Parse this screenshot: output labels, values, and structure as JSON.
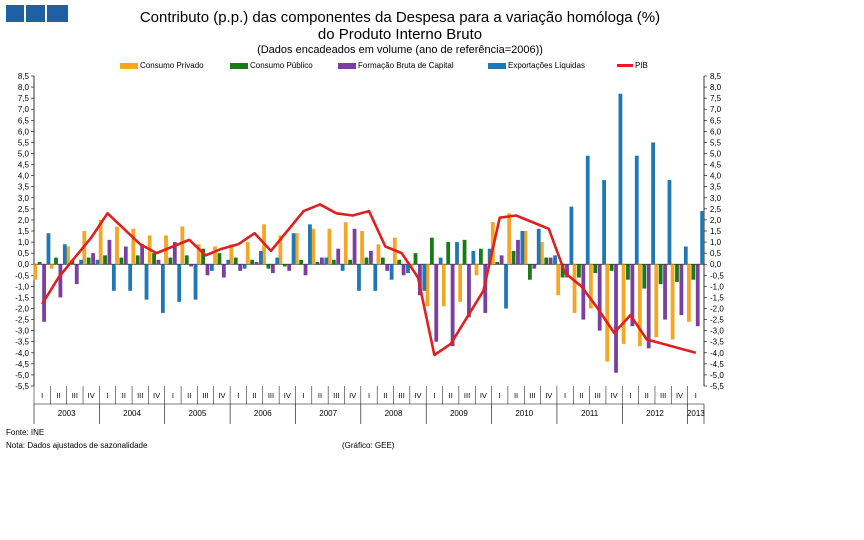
{
  "header": {
    "title_line1": "Contributo (p.p.) das componentes da Despesa para a variação homóloga (%)",
    "title_line2": "do Produto Interno Bruto",
    "subtitle": "(Dados encadeados em volume (ano de referência=2006))"
  },
  "colors": {
    "logo": "#1f5fa3",
    "consumo_privado": "#f5a623",
    "consumo_publico": "#1a7a1a",
    "fbc": "#7a3fa0",
    "exportacoes": "#1f78b4",
    "pib": "#e02020"
  },
  "legend": [
    {
      "label": "Consumo Privado",
      "key": "consumo_privado",
      "kind": "bar"
    },
    {
      "label": "Consumo Público",
      "key": "consumo_publico",
      "kind": "bar"
    },
    {
      "label": "Formação Bruta de Capital",
      "key": "fbc",
      "kind": "bar"
    },
    {
      "label": "Exportações Líquidas",
      "key": "exportacoes",
      "kind": "bar"
    },
    {
      "label": "PIB",
      "key": "pib",
      "kind": "line"
    }
  ],
  "footer": {
    "source": "Fonte:  INE",
    "note": "Nota: Dados ajustados de sazonalidade",
    "credit": "(Gráfico:  GEE)"
  },
  "chart_data": {
    "type": "bar",
    "title": "Contributo (p.p.) das componentes da Despesa para a variação homóloga (%) do Produto Interno Bruto",
    "ylim": [
      -5.5,
      8.5
    ],
    "yticks": [
      "8,5",
      "8,0",
      "7,5",
      "7,0",
      "6,5",
      "6,0",
      "5,5",
      "5,0",
      "4,5",
      "4,0",
      "3,5",
      "3,0",
      "2,5",
      "2,0",
      "1,5",
      "1,0",
      "0,5",
      "0,0",
      "-0,5",
      "-1,0",
      "-1,5",
      "-2,0",
      "-2,5",
      "-3,0",
      "-3,5",
      "-4,0",
      "-4,5",
      "-5,0",
      "-5,5"
    ],
    "quarter_labels": [
      "I",
      "II",
      "III",
      "IV",
      "I",
      "II",
      "III",
      "IV",
      "I",
      "II",
      "III",
      "IV",
      "I",
      "II",
      "III",
      "IV",
      "I",
      "II",
      "III",
      "IV",
      "I",
      "II",
      "III",
      "IV",
      "I",
      "II",
      "III",
      "IV",
      "I",
      "II",
      "III",
      "IV",
      "I",
      "II",
      "III",
      "IV",
      "I",
      "II",
      "III",
      "IV",
      "I"
    ],
    "years": [
      {
        "label": "2003",
        "quarters": 4
      },
      {
        "label": "2004",
        "quarters": 4
      },
      {
        "label": "2005",
        "quarters": 4
      },
      {
        "label": "2006",
        "quarters": 4
      },
      {
        "label": "2007",
        "quarters": 4
      },
      {
        "label": "2008",
        "quarters": 4
      },
      {
        "label": "2009",
        "quarters": 4
      },
      {
        "label": "2010",
        "quarters": 4
      },
      {
        "label": "2011",
        "quarters": 4
      },
      {
        "label": "2012",
        "quarters": 4
      },
      {
        "label": "2013",
        "quarters": 1
      }
    ],
    "series": [
      {
        "name": "Consumo Privado",
        "key": "consumo_privado",
        "values": [
          -0.7,
          -0.2,
          0.8,
          1.5,
          2.0,
          1.7,
          1.6,
          1.3,
          1.3,
          1.7,
          0.9,
          0.8,
          0.9,
          1.0,
          1.8,
          1.3,
          1.4,
          1.6,
          1.6,
          1.9,
          1.5,
          0.9,
          1.2,
          -0.1,
          -1.9,
          -1.9,
          -1.7,
          -0.5,
          1.9,
          2.3,
          1.5,
          1.0,
          -1.4,
          -2.2,
          -2.0,
          -4.4,
          -3.6,
          -3.7,
          -3.3,
          -3.4,
          -2.6
        ]
      },
      {
        "name": "Consumo Público",
        "key": "consumo_publico",
        "values": [
          0.1,
          0.3,
          0.2,
          0.3,
          0.4,
          0.3,
          0.4,
          0.5,
          0.3,
          0.4,
          0.7,
          0.5,
          0.3,
          0.2,
          -0.2,
          -0.1,
          0.2,
          0.1,
          0.2,
          0.2,
          0.3,
          0.3,
          0.2,
          0.5,
          1.2,
          1.0,
          1.1,
          0.7,
          0.1,
          0.6,
          -0.7,
          0.3,
          -0.6,
          -0.6,
          -0.4,
          -0.3,
          -0.7,
          -1.1,
          -0.9,
          -0.8,
          -0.7
        ]
      },
      {
        "name": "Formação Bruta de Capital",
        "key": "fbc",
        "values": [
          -2.6,
          -1.5,
          -0.9,
          0.5,
          1.1,
          0.8,
          0.9,
          0.2,
          1.0,
          -0.1,
          -0.5,
          -0.6,
          -0.3,
          0.1,
          -0.4,
          -0.3,
          -0.5,
          0.3,
          0.7,
          1.6,
          0.6,
          -0.3,
          -0.5,
          -1.4,
          -3.5,
          -3.7,
          -2.4,
          -2.2,
          0.4,
          1.1,
          -0.2,
          0.3,
          -0.6,
          -2.5,
          -3.0,
          -4.9,
          -2.8,
          -3.8,
          -2.5,
          -2.3,
          -2.8
        ]
      },
      {
        "name": "Exportações Líquidas",
        "key": "exportacoes",
        "values": [
          1.4,
          0.9,
          0.2,
          0.2,
          -1.2,
          -1.2,
          -1.6,
          -2.2,
          -1.7,
          -1.6,
          -0.3,
          0.2,
          -0.2,
          0.6,
          0.3,
          1.4,
          1.8,
          0.3,
          -0.3,
          -1.2,
          -1.2,
          -0.7,
          -0.4,
          -1.2,
          0.3,
          1.0,
          0.6,
          0.7,
          -2.0,
          1.5,
          1.6,
          0.4,
          2.6,
          4.9,
          3.8,
          7.7,
          4.9,
          5.5,
          3.8,
          0.8,
          2.4
        ]
      },
      {
        "name": "PIB",
        "key": "pib",
        "type": "line",
        "values": [
          -1.8,
          -0.6,
          0.3,
          1.2,
          2.3,
          1.6,
          0.9,
          0.5,
          0.8,
          1.1,
          0.4,
          0.7,
          0.9,
          1.4,
          0.6,
          1.5,
          2.4,
          2.7,
          2.3,
          2.2,
          2.4,
          0.8,
          0.5,
          -0.6,
          -4.1,
          -3.6,
          -2.4,
          -1.2,
          2.1,
          2.2,
          1.9,
          1.6,
          -0.4,
          -1.0,
          -2.0,
          -3.1,
          -2.3,
          -3.4,
          -3.6,
          -3.8,
          -4.0
        ]
      }
    ]
  }
}
